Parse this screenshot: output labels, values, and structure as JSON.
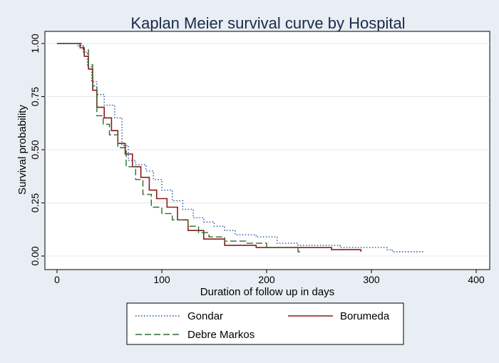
{
  "chart_data": {
    "type": "line",
    "title": "Kaplan Meier survival curve by Hospital",
    "xlabel": "Duration of follow up in days",
    "ylabel": "Survival probability",
    "xlim": [
      0,
      400
    ],
    "ylim": [
      0,
      1
    ],
    "xticks": [
      "0",
      "100",
      "200",
      "300",
      "400"
    ],
    "yticks": [
      "0.00",
      "0.25",
      "0.50",
      "0.75",
      "1.00"
    ],
    "grid": "horizontal",
    "legend_position": "bottom",
    "series": [
      {
        "name": "Gondar",
        "color": "#1f4e9e",
        "style": "dotted",
        "points": [
          [
            0,
            1.0
          ],
          [
            17,
            1.0
          ],
          [
            20,
            0.99
          ],
          [
            25,
            0.96
          ],
          [
            29,
            0.89
          ],
          [
            33,
            0.82
          ],
          [
            38,
            0.76
          ],
          [
            45,
            0.71
          ],
          [
            55,
            0.65
          ],
          [
            62,
            0.52
          ],
          [
            68,
            0.45
          ],
          [
            75,
            0.43
          ],
          [
            85,
            0.4
          ],
          [
            92,
            0.36
          ],
          [
            100,
            0.31
          ],
          [
            110,
            0.26
          ],
          [
            120,
            0.22
          ],
          [
            130,
            0.18
          ],
          [
            140,
            0.16
          ],
          [
            150,
            0.14
          ],
          [
            160,
            0.12
          ],
          [
            170,
            0.1
          ],
          [
            190,
            0.09
          ],
          [
            210,
            0.06
          ],
          [
            230,
            0.05
          ],
          [
            250,
            0.05
          ],
          [
            270,
            0.04
          ],
          [
            300,
            0.04
          ],
          [
            315,
            0.03
          ],
          [
            320,
            0.02
          ],
          [
            350,
            0.02
          ]
        ]
      },
      {
        "name": "Borumeda",
        "color": "#8b1a1a",
        "style": "solid",
        "points": [
          [
            0,
            1.0
          ],
          [
            18,
            1.0
          ],
          [
            22,
            0.98
          ],
          [
            26,
            0.94
          ],
          [
            30,
            0.88
          ],
          [
            34,
            0.78
          ],
          [
            38,
            0.7
          ],
          [
            45,
            0.65
          ],
          [
            52,
            0.59
          ],
          [
            58,
            0.53
          ],
          [
            65,
            0.48
          ],
          [
            72,
            0.42
          ],
          [
            80,
            0.37
          ],
          [
            88,
            0.31
          ],
          [
            95,
            0.27
          ],
          [
            105,
            0.23
          ],
          [
            115,
            0.17
          ],
          [
            125,
            0.12
          ],
          [
            140,
            0.08
          ],
          [
            160,
            0.05
          ],
          [
            190,
            0.04
          ],
          [
            220,
            0.04
          ],
          [
            250,
            0.04
          ],
          [
            262,
            0.03
          ],
          [
            290,
            0.02
          ]
        ]
      },
      {
        "name": "Debre Markos",
        "color": "#2e6b2e",
        "style": "dashed",
        "points": [
          [
            0,
            1.0
          ],
          [
            20,
            1.0
          ],
          [
            25,
            0.97
          ],
          [
            30,
            0.9
          ],
          [
            34,
            0.8
          ],
          [
            38,
            0.66
          ],
          [
            44,
            0.62
          ],
          [
            50,
            0.57
          ],
          [
            58,
            0.51
          ],
          [
            66,
            0.42
          ],
          [
            75,
            0.36
          ],
          [
            82,
            0.29
          ],
          [
            90,
            0.23
          ],
          [
            100,
            0.2
          ],
          [
            110,
            0.17
          ],
          [
            125,
            0.14
          ],
          [
            135,
            0.11
          ],
          [
            145,
            0.09
          ],
          [
            160,
            0.07
          ],
          [
            180,
            0.06
          ],
          [
            200,
            0.04
          ],
          [
            215,
            0.04
          ],
          [
            230,
            0.02
          ],
          [
            232,
            0.01
          ]
        ]
      }
    ]
  }
}
